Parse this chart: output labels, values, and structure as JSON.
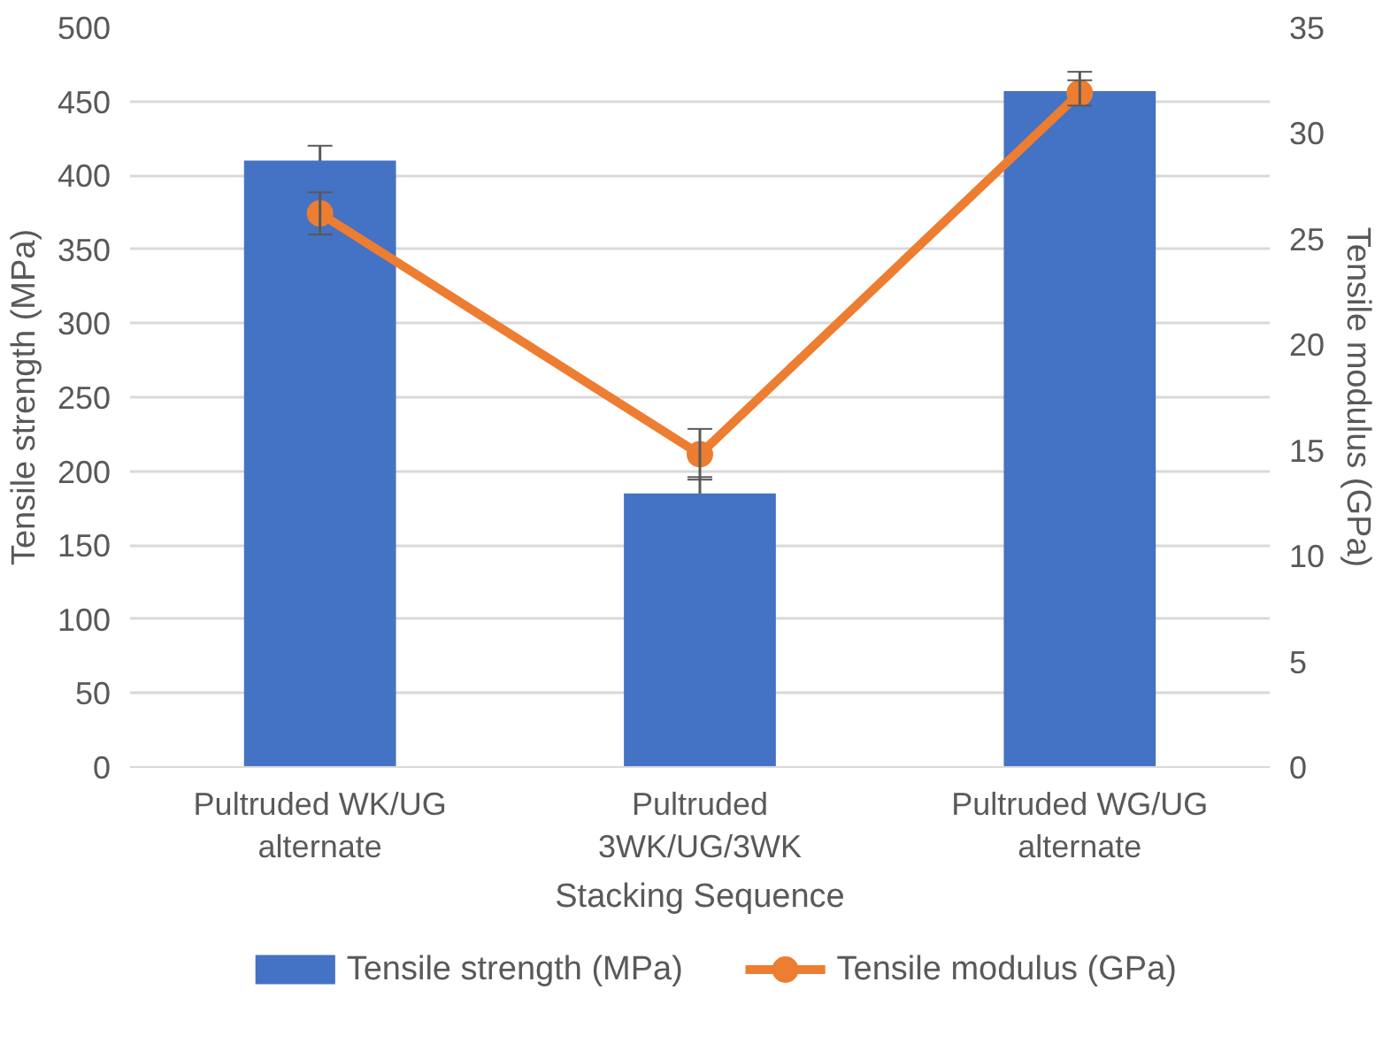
{
  "chart_data": {
    "type": "bar",
    "xlabel": "Stacking Sequence",
    "ylabel": "Tensile strength (MPa)",
    "y2label": "Tensile modulus (GPa)",
    "categories": [
      "Pultruded WK/UG\nalternate",
      "Pultruded\n3WK/UG/3WK",
      "Pultruded WG/UG\nalternate"
    ],
    "series": [
      {
        "name": "Tensile strength (MPa)",
        "color": "#4472c4",
        "values": [
          410,
          185,
          457
        ],
        "errors": [
          10,
          11,
          13
        ]
      },
      {
        "name": "Tensile modulus (GPa)",
        "type": "line",
        "axis": "y2",
        "color": "#ed7d31",
        "values": [
          26.2,
          14.8,
          31.9
        ],
        "errors": [
          1.0,
          1.2,
          0.6
        ],
        "marker": "circle",
        "line_style": "solid"
      }
    ],
    "ylim": [
      0,
      500
    ],
    "yticks": [
      0,
      50,
      100,
      150,
      200,
      250,
      300,
      350,
      400,
      450,
      500
    ],
    "y2lim": [
      0,
      35
    ],
    "y2ticks": [
      0,
      5,
      10,
      15,
      20,
      25,
      30,
      35
    ],
    "grid": "y",
    "legend": "bottom"
  }
}
